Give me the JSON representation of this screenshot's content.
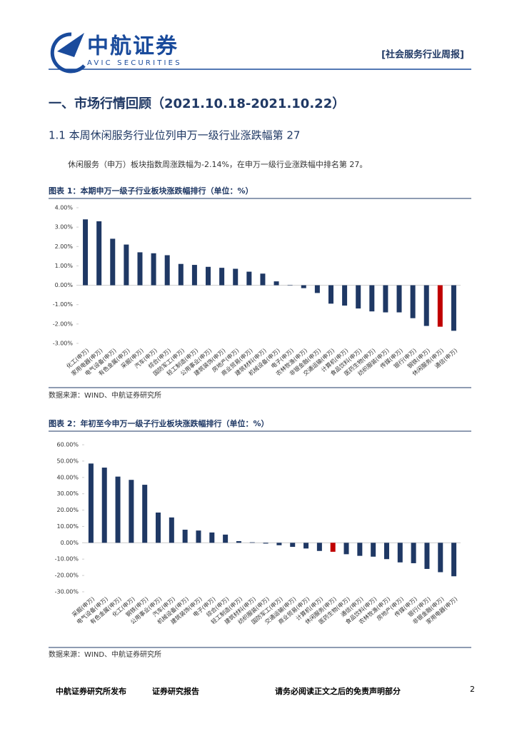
{
  "header": {
    "logo_cn": "中航证券",
    "logo_en": "AVIC SECURITIES",
    "report_type": "[社会服务行业周报]"
  },
  "section_title": "一、市场行情回顾（2021.10.18-2021.10.22）",
  "subsection_title": "1.1 本周休闲服务行业位列申万一级行业涨跌幅第 27",
  "paragraph": "休闲服务（申万）板块指数周涨跌幅为-2.14%，在申万一级行业涨跌幅中排名第 27。",
  "chart_data": [
    {
      "type": "bar",
      "title": "图表 1：本期申万一级子行业板块涨跌幅排行（单位：%）",
      "source": "数据来源：WIND、中航证券研究所",
      "categories": [
        "化工(申万)",
        "家用电器(申万)",
        "电气设备(申万)",
        "有色金属(申万)",
        "采掘(申万)",
        "汽车(申万)",
        "综合(申万)",
        "国防军工(申万)",
        "轻工制造(申万)",
        "公用事业(申万)",
        "建筑装饰(申万)",
        "房地产(申万)",
        "商业贸易(申万)",
        "建筑材料(申万)",
        "机械设备(申万)",
        "电子(申万)",
        "农林牧渔(申万)",
        "非银金融(申万)",
        "交通运输(申万)",
        "计算机(申万)",
        "食品饮料(申万)",
        "医药生物(申万)",
        "纺织服装(申万)",
        "传媒(申万)",
        "银行(申万)",
        "钢铁(申万)",
        "休闲服务(申万)",
        "通信(申万)"
      ],
      "values": [
        3.4,
        3.3,
        2.4,
        2.1,
        1.7,
        1.65,
        1.55,
        1.1,
        1.05,
        0.95,
        0.9,
        0.85,
        0.7,
        0.6,
        0.2,
        0.02,
        -0.15,
        -0.4,
        -0.95,
        -1.05,
        -1.2,
        -1.35,
        -1.4,
        -1.4,
        -1.7,
        -2.1,
        -2.14,
        -2.35
      ],
      "colors": [
        "#1f3864",
        "#1f3864",
        "#1f3864",
        "#1f3864",
        "#1f3864",
        "#1f3864",
        "#1f3864",
        "#1f3864",
        "#1f3864",
        "#1f3864",
        "#1f3864",
        "#1f3864",
        "#1f3864",
        "#1f3864",
        "#1f3864",
        "#1f3864",
        "#1f3864",
        "#1f3864",
        "#1f3864",
        "#1f3864",
        "#1f3864",
        "#1f3864",
        "#1f3864",
        "#1f3864",
        "#1f3864",
        "#1f3864",
        "#c00000",
        "#1f3864"
      ],
      "ylim": [
        -3,
        4
      ],
      "yticks": [
        {
          "value": -3,
          "label": "-3.00%"
        },
        {
          "value": -2,
          "label": "-2.00%"
        },
        {
          "value": -1,
          "label": "-1.00%"
        },
        {
          "value": 0,
          "label": "0.00%"
        },
        {
          "value": 1,
          "label": "1.00%"
        },
        {
          "value": 2,
          "label": "2.00%"
        },
        {
          "value": 3,
          "label": "3.00%"
        },
        {
          "value": 4,
          "label": "4.00%"
        }
      ]
    },
    {
      "type": "bar",
      "title": "图表 2：年初至今申万一级子行业板块涨跌幅排行（单位：%）",
      "source": "数据来源：WIND、中航证券研究所",
      "categories": [
        "采掘(申万)",
        "电气设备(申万)",
        "有色金属(申万)",
        "化工(申万)",
        "钢铁(申万)",
        "公用事业(申万)",
        "汽车(申万)",
        "机械设备(申万)",
        "建筑装饰(申万)",
        "电子(申万)",
        "综合(申万)",
        "轻工制造(申万)",
        "建筑材料(申万)",
        "纺织服装(申万)",
        "国防军工(申万)",
        "交通运输(申万)",
        "商业贸易(申万)",
        "计算机(申万)",
        "休闲服务(申万)",
        "医药生物(申万)",
        "通信(申万)",
        "食品饮料(申万)",
        "农林牧渔(申万)",
        "房地产(申万)",
        "传媒(申万)",
        "银行(申万)",
        "非银金融(申万)",
        "家用电器(申万)"
      ],
      "values": [
        48.5,
        46,
        40.5,
        38.5,
        35.5,
        18.5,
        15.5,
        8,
        7.5,
        6.3,
        5,
        1,
        0.3,
        -0.5,
        -1.5,
        -2.5,
        -3.5,
        -5,
        -5.5,
        -7,
        -8,
        -8.5,
        -10,
        -12,
        -12.5,
        -16,
        -18,
        -20.5
      ],
      "colors": [
        "#1f3864",
        "#1f3864",
        "#1f3864",
        "#1f3864",
        "#1f3864",
        "#1f3864",
        "#1f3864",
        "#1f3864",
        "#1f3864",
        "#1f3864",
        "#1f3864",
        "#1f3864",
        "#1f3864",
        "#1f3864",
        "#1f3864",
        "#1f3864",
        "#1f3864",
        "#1f3864",
        "#c00000",
        "#1f3864",
        "#1f3864",
        "#1f3864",
        "#1f3864",
        "#1f3864",
        "#1f3864",
        "#1f3864",
        "#1f3864",
        "#1f3864"
      ],
      "ylim": [
        -30,
        60
      ],
      "yticks": [
        {
          "value": -30,
          "label": "-30.00%"
        },
        {
          "value": -20,
          "label": "-20.00%"
        },
        {
          "value": -10,
          "label": "-10.00%"
        },
        {
          "value": 0,
          "label": "0.00%"
        },
        {
          "value": 10,
          "label": "10.00%"
        },
        {
          "value": 20,
          "label": "20.00%"
        },
        {
          "value": 30,
          "label": "30.00%"
        },
        {
          "value": 40,
          "label": "40.00%"
        },
        {
          "value": 50,
          "label": "50.00%"
        },
        {
          "value": 60,
          "label": "60.00%"
        }
      ]
    }
  ],
  "footer": {
    "left": "中航证券研究所发布",
    "middle": "证券研究报告",
    "right": "请务必阅读正文之后的免责声明部分",
    "page": 2
  }
}
